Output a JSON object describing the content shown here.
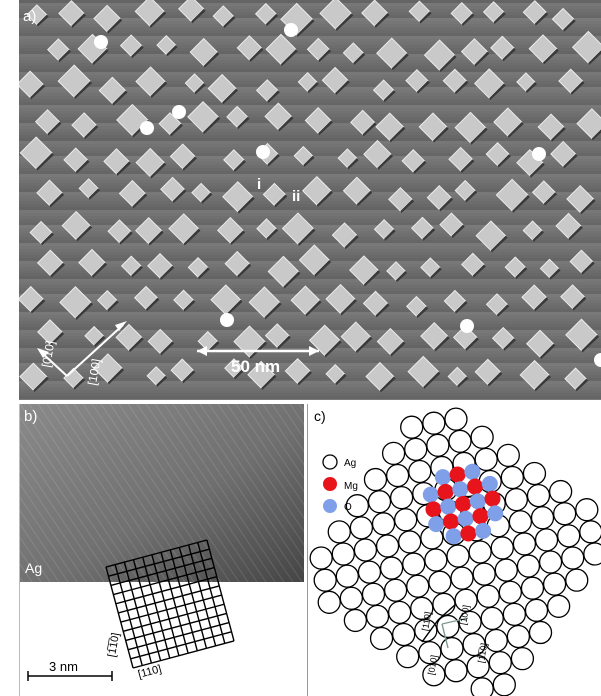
{
  "panel_a": {
    "label": "a)",
    "scale_bar_text": "50 nm",
    "direction_x": "[010]",
    "direction_y": "[100]",
    "marker_i": "i",
    "marker_ii": "ii"
  },
  "panel_b": {
    "label": "b)",
    "substrate_label": "Ag",
    "scale_bar_text": "3 nm",
    "direction_1": "[110]",
    "direction_2": "[1̅1̅0]"
  },
  "panel_c": {
    "label": "c)",
    "legend": [
      {
        "label": "Ag",
        "color": "#ffffff"
      },
      {
        "label": "Mg",
        "color": "#e8141c"
      },
      {
        "label": "O",
        "color": "#7f9fe8"
      }
    ],
    "direction_labels": [
      "[110]",
      "[100]",
      "[010]",
      "[1̅1̅0]"
    ]
  },
  "colors": {
    "stm_background": "#6f6f6f",
    "island": "#c9c9c9",
    "mg": "#e8141c",
    "o": "#7f9fe8"
  }
}
